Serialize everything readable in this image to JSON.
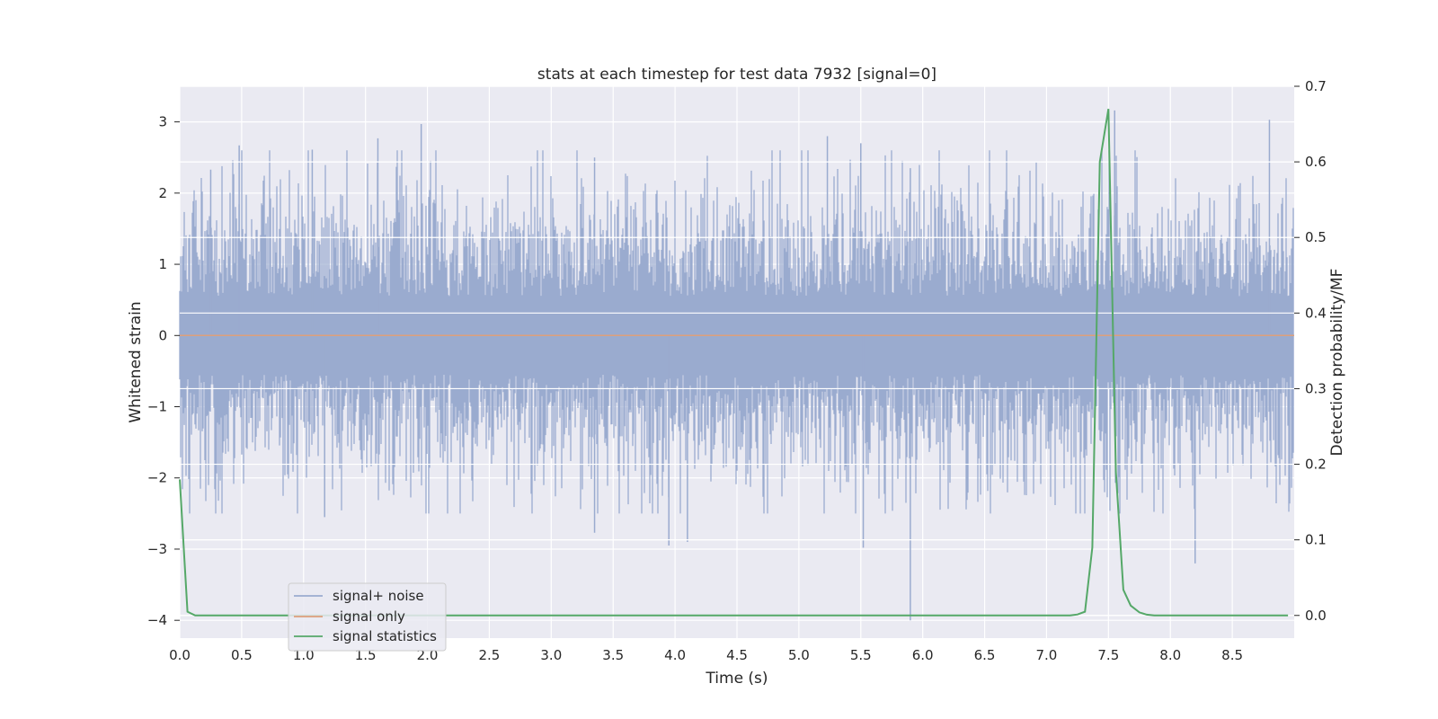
{
  "chart_data": {
    "type": "line",
    "title": "stats at each timestep for test data 7932 [signal=0]",
    "xlabel": "Time (s)",
    "ylabel": "Whitened strain",
    "y2label": "Detection probability/MF",
    "xlim": [
      0,
      9
    ],
    "ylim": [
      -4.25,
      3.5
    ],
    "y2lim": [
      -0.03,
      0.7
    ],
    "xticks": [
      "0.0",
      "0.5",
      "1.0",
      "1.5",
      "2.0",
      "2.5",
      "3.0",
      "3.5",
      "4.0",
      "4.5",
      "5.0",
      "5.5",
      "6.0",
      "6.5",
      "7.0",
      "7.5",
      "8.0",
      "8.5"
    ],
    "yticks": [
      "3",
      "2",
      "1",
      "0",
      "−1",
      "−2",
      "−3",
      "−4"
    ],
    "y2ticks": [
      "0.7",
      "0.6",
      "0.5",
      "0.4",
      "0.3",
      "0.2",
      "0.1",
      "0.0"
    ],
    "grid": true,
    "legend_position": "lower left",
    "series": [
      {
        "name": "signal+ noise",
        "color": "#9aabcf",
        "axis": "left",
        "noise": {
          "duration_s": 9,
          "amplitude_std": 0.85
        },
        "peaks": [
          {
            "x": 0.25,
            "y": 2.33
          },
          {
            "x": 0.48,
            "y": 2.67
          },
          {
            "x": 1.07,
            "y": 2.61
          },
          {
            "x": 1.6,
            "y": 2.77
          },
          {
            "x": 1.95,
            "y": 2.97
          },
          {
            "x": 3.35,
            "y": 2.5
          },
          {
            "x": 5.23,
            "y": 2.8
          },
          {
            "x": 5.5,
            "y": 2.7
          },
          {
            "x": 5.9,
            "y": 2.35
          },
          {
            "x": 7.55,
            "y": 3.16
          },
          {
            "x": 8.8,
            "y": 3.03
          }
        ],
        "troughs": [
          {
            "x": 1.17,
            "y": -2.55
          },
          {
            "x": 3.35,
            "y": -2.77
          },
          {
            "x": 3.95,
            "y": -2.95
          },
          {
            "x": 4.1,
            "y": -2.9
          },
          {
            "x": 5.52,
            "y": -2.98
          },
          {
            "x": 5.9,
            "y": -4.0
          },
          {
            "x": 8.2,
            "y": -3.2
          }
        ]
      },
      {
        "name": "signal only",
        "color": "#dd9f7b",
        "axis": "left",
        "x": [
          0,
          9
        ],
        "y": [
          0,
          0
        ]
      },
      {
        "name": "signal statistics",
        "color": "#55a868",
        "axis": "right",
        "x": [
          0.0,
          0.0625,
          0.125,
          0.25,
          7.0,
          7.19,
          7.25,
          7.31,
          7.37,
          7.43,
          7.5,
          7.56,
          7.62,
          7.68,
          7.75,
          7.81,
          7.87,
          8.95
        ],
        "y": [
          0.18,
          0.005,
          0.0,
          0.0,
          0.0,
          0.0,
          0.0013,
          0.005,
          0.09,
          0.6,
          0.67,
          0.19,
          0.034,
          0.013,
          0.004,
          0.001,
          0.0,
          0.0
        ]
      }
    ]
  }
}
